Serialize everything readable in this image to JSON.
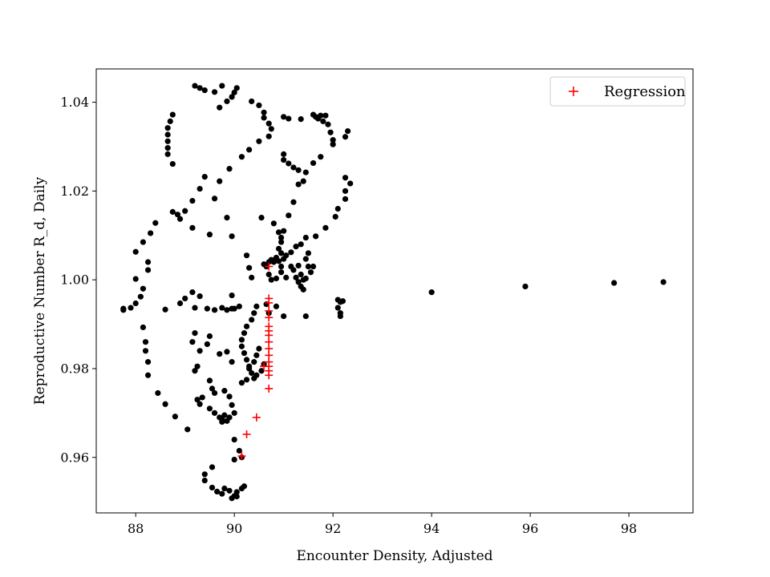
{
  "chart_data": {
    "type": "scatter",
    "title": "",
    "xlabel": "Encounter Density, Adjusted",
    "ylabel": "Reproductive Number R_d, Daily",
    "xlim": [
      87.2,
      99.3
    ],
    "ylim": [
      0.9475,
      1.0475
    ],
    "xticks": [
      88,
      90,
      92,
      94,
      96,
      98
    ],
    "yticks": [
      0.96,
      0.98,
      1.0,
      1.02,
      1.04
    ],
    "ytick_labels": [
      "0.96",
      "0.98",
      "1.00",
      "1.02",
      "1.04"
    ],
    "grid": false,
    "legend_position": "top-right",
    "colors": {
      "observed": "#000000",
      "regression": "#ff0000"
    },
    "series": [
      {
        "marker": "dot",
        "points": [
          [
            89.2,
            1.0437
          ],
          [
            89.3,
            1.0432
          ],
          [
            89.4,
            1.0427
          ],
          [
            89.6,
            1.0423
          ],
          [
            89.75,
            1.0437
          ],
          [
            89.7,
            1.0388
          ],
          [
            89.85,
            1.0402
          ],
          [
            89.95,
            1.0412
          ],
          [
            90.0,
            1.0422
          ],
          [
            90.05,
            1.0432
          ],
          [
            88.75,
            1.0372
          ],
          [
            88.7,
            1.0357
          ],
          [
            88.65,
            1.0342
          ],
          [
            88.65,
            1.0327
          ],
          [
            88.65,
            1.0312
          ],
          [
            88.65,
            1.0297
          ],
          [
            88.65,
            1.0283
          ],
          [
            88.75,
            1.0261
          ],
          [
            90.35,
            1.0402
          ],
          [
            90.5,
            1.0393
          ],
          [
            90.6,
            1.0377
          ],
          [
            90.6,
            1.0365
          ],
          [
            90.7,
            1.0352
          ],
          [
            90.75,
            1.034
          ],
          [
            90.7,
            1.0323
          ],
          [
            90.5,
            1.0312
          ],
          [
            90.3,
            1.0293
          ],
          [
            90.15,
            1.0277
          ],
          [
            89.9,
            1.025
          ],
          [
            89.7,
            1.0222
          ],
          [
            89.6,
            1.0183
          ],
          [
            91.0,
            1.0367
          ],
          [
            91.1,
            1.0363
          ],
          [
            91.35,
            1.0362
          ],
          [
            91.6,
            1.0372
          ],
          [
            91.65,
            1.0367
          ],
          [
            91.75,
            1.037
          ],
          [
            91.85,
            1.037
          ],
          [
            91.7,
            1.0363
          ],
          [
            91.8,
            1.0357
          ],
          [
            91.9,
            1.035
          ],
          [
            91.95,
            1.0332
          ],
          [
            92.0,
            1.0315
          ],
          [
            92.0,
            1.0305
          ],
          [
            91.75,
            1.0277
          ],
          [
            91.6,
            1.0263
          ],
          [
            91.45,
            1.0242
          ],
          [
            91.4,
            1.0222
          ],
          [
            92.3,
            1.0335
          ],
          [
            92.25,
            1.0322
          ],
          [
            92.35,
            1.0217
          ],
          [
            92.25,
            1.02
          ],
          [
            92.25,
            1.0182
          ],
          [
            92.25,
            1.023
          ],
          [
            92.1,
            1.016
          ],
          [
            92.05,
            1.0142
          ],
          [
            91.85,
            1.0117
          ],
          [
            91.65,
            1.0098
          ],
          [
            91.0,
            1.0283
          ],
          [
            91.0,
            1.027
          ],
          [
            91.1,
            1.0262
          ],
          [
            91.2,
            1.0253
          ],
          [
            91.3,
            1.0247
          ],
          [
            91.3,
            1.0215
          ],
          [
            91.2,
            1.0175
          ],
          [
            91.1,
            1.0145
          ],
          [
            91.0,
            1.011
          ],
          [
            90.95,
            1.0095
          ],
          [
            90.9,
            1.007
          ],
          [
            90.85,
            1.005
          ],
          [
            89.4,
            1.0232
          ],
          [
            89.3,
            1.0205
          ],
          [
            89.15,
            1.0178
          ],
          [
            89.0,
            1.0155
          ],
          [
            88.85,
            1.0147
          ],
          [
            88.75,
            1.0153
          ],
          [
            88.9,
            1.0137
          ],
          [
            89.15,
            1.0117
          ],
          [
            89.5,
            1.0102
          ],
          [
            88.4,
            1.0128
          ],
          [
            88.3,
            1.0105
          ],
          [
            88.15,
            1.0085
          ],
          [
            88.0,
            1.0063
          ],
          [
            88.25,
            1.004
          ],
          [
            88.25,
            1.0022
          ],
          [
            88.0,
            1.0002
          ],
          [
            88.15,
            0.998
          ],
          [
            88.1,
            0.9962
          ],
          [
            88.0,
            0.9947
          ],
          [
            87.9,
            0.9937
          ],
          [
            87.75,
            0.9935
          ],
          [
            87.75,
            0.9932
          ],
          [
            89.0,
            0.9958
          ],
          [
            88.9,
            0.9947
          ],
          [
            89.15,
            0.9972
          ],
          [
            88.6,
            0.9933
          ],
          [
            89.2,
            0.9937
          ],
          [
            89.45,
            0.9935
          ],
          [
            89.6,
            0.9932
          ],
          [
            89.75,
            0.9937
          ],
          [
            89.85,
            0.9932
          ],
          [
            89.95,
            0.9935
          ],
          [
            89.95,
            0.9965
          ],
          [
            90.0,
            0.9935
          ],
          [
            90.1,
            0.994
          ],
          [
            89.85,
            1.014
          ],
          [
            89.95,
            1.0098
          ],
          [
            90.55,
            1.014
          ],
          [
            90.8,
            1.0127
          ],
          [
            90.9,
            1.0107
          ],
          [
            90.95,
            1.0085
          ],
          [
            90.95,
            1.006
          ],
          [
            90.25,
            1.0055
          ],
          [
            90.3,
            1.0027
          ],
          [
            90.35,
            1.0005
          ],
          [
            90.6,
            1.0035
          ],
          [
            90.7,
            1.004
          ],
          [
            90.75,
            1.0045
          ],
          [
            90.8,
            1.004
          ],
          [
            90.9,
            1.0042
          ],
          [
            90.95,
            1.003
          ],
          [
            91.0,
            1.0047
          ],
          [
            91.05,
            1.0055
          ],
          [
            91.15,
            1.0062
          ],
          [
            91.25,
            1.0075
          ],
          [
            91.35,
            1.008
          ],
          [
            91.45,
            1.0095
          ],
          [
            90.65,
            1.003
          ],
          [
            90.7,
            1.0012
          ],
          [
            90.75,
            1.0
          ],
          [
            90.85,
            1.0003
          ],
          [
            90.95,
            1.0017
          ],
          [
            91.05,
            1.0005
          ],
          [
            91.15,
            1.003
          ],
          [
            91.2,
            1.0022
          ],
          [
            91.3,
            1.0032
          ],
          [
            91.35,
            1.0012
          ],
          [
            91.4,
            1.0
          ],
          [
            91.45,
            1.0003
          ],
          [
            91.5,
            1.003
          ],
          [
            91.55,
            1.0017
          ],
          [
            91.25,
            1.0005
          ],
          [
            91.3,
            0.9995
          ],
          [
            91.35,
            0.9985
          ],
          [
            91.4,
            0.9978
          ],
          [
            91.6,
            1.003
          ],
          [
            91.45,
            1.0047
          ],
          [
            91.5,
            1.006
          ],
          [
            90.85,
            0.994
          ],
          [
            91.0,
            0.9918
          ],
          [
            90.45,
            0.994
          ],
          [
            90.65,
            0.9945
          ],
          [
            90.7,
            0.9925
          ],
          [
            90.4,
            0.9925
          ],
          [
            90.35,
            0.991
          ],
          [
            90.25,
            0.9895
          ],
          [
            90.2,
            0.988
          ],
          [
            90.15,
            0.9865
          ],
          [
            90.15,
            0.985
          ],
          [
            90.2,
            0.9835
          ],
          [
            90.25,
            0.982
          ],
          [
            90.3,
            0.9805
          ],
          [
            90.35,
            0.979
          ],
          [
            90.45,
            0.9785
          ],
          [
            90.4,
            0.9778
          ],
          [
            90.25,
            0.9775
          ],
          [
            90.15,
            0.9768
          ],
          [
            90.3,
            0.98
          ],
          [
            90.4,
            0.9815
          ],
          [
            90.45,
            0.983
          ],
          [
            90.5,
            0.9845
          ],
          [
            90.6,
            0.981
          ],
          [
            90.55,
            0.9795
          ],
          [
            89.3,
            0.9963
          ],
          [
            89.2,
            0.988
          ],
          [
            89.15,
            0.986
          ],
          [
            89.45,
            0.9855
          ],
          [
            89.5,
            0.9873
          ],
          [
            89.7,
            0.9833
          ],
          [
            89.85,
            0.9838
          ],
          [
            89.95,
            0.9815
          ],
          [
            89.2,
            0.9795
          ],
          [
            89.25,
            0.9805
          ],
          [
            89.3,
            0.984
          ],
          [
            89.55,
            0.9755
          ],
          [
            88.15,
            0.9893
          ],
          [
            88.2,
            0.986
          ],
          [
            88.2,
            0.984
          ],
          [
            88.25,
            0.9815
          ],
          [
            88.25,
            0.9785
          ],
          [
            88.45,
            0.9745
          ],
          [
            88.6,
            0.972
          ],
          [
            88.8,
            0.9692
          ],
          [
            89.05,
            0.9663
          ],
          [
            89.25,
            0.973
          ],
          [
            89.3,
            0.972
          ],
          [
            89.35,
            0.9735
          ],
          [
            89.5,
            0.971
          ],
          [
            89.6,
            0.97
          ],
          [
            89.7,
            0.969
          ],
          [
            89.75,
            0.9685
          ],
          [
            89.85,
            0.9682
          ],
          [
            89.9,
            0.969
          ],
          [
            90.0,
            0.97
          ],
          [
            89.8,
            0.9695
          ],
          [
            89.6,
            0.9745
          ],
          [
            89.5,
            0.9773
          ],
          [
            89.8,
            0.975
          ],
          [
            89.9,
            0.9737
          ],
          [
            89.95,
            0.9718
          ],
          [
            89.75,
            0.968
          ],
          [
            90.0,
            0.964
          ],
          [
            90.1,
            0.9615
          ],
          [
            90.15,
            0.96
          ],
          [
            90.0,
            0.9595
          ],
          [
            89.55,
            0.9578
          ],
          [
            89.4,
            0.9562
          ],
          [
            89.4,
            0.9548
          ],
          [
            89.55,
            0.9532
          ],
          [
            89.65,
            0.9523
          ],
          [
            89.75,
            0.9518
          ],
          [
            89.8,
            0.953
          ],
          [
            89.9,
            0.9525
          ],
          [
            89.95,
            0.9508
          ],
          [
            90.0,
            0.9513
          ],
          [
            90.05,
            0.9522
          ],
          [
            90.05,
            0.9512
          ],
          [
            90.2,
            0.9535
          ],
          [
            90.15,
            0.953
          ],
          [
            92.1,
            0.9955
          ],
          [
            92.15,
            0.995
          ],
          [
            92.1,
            0.9937
          ],
          [
            92.15,
            0.9925
          ],
          [
            92.2,
            0.9952
          ],
          [
            92.15,
            0.9918
          ],
          [
            91.45,
            0.9918
          ],
          [
            94.0,
            0.9972
          ],
          [
            95.9,
            0.9985
          ],
          [
            97.7,
            0.9993
          ],
          [
            98.7,
            0.9995
          ]
        ]
      },
      {
        "name": "Regression",
        "marker": "plus",
        "points": [
          [
            90.7,
            1.003
          ],
          [
            90.7,
            0.9958
          ],
          [
            90.7,
            0.9948
          ],
          [
            90.7,
            0.993
          ],
          [
            90.7,
            0.9915
          ],
          [
            90.7,
            0.9895
          ],
          [
            90.7,
            0.9885
          ],
          [
            90.7,
            0.9875
          ],
          [
            90.7,
            0.986
          ],
          [
            90.7,
            0.9845
          ],
          [
            90.7,
            0.983
          ],
          [
            90.7,
            0.9815
          ],
          [
            90.7,
            0.9805
          ],
          [
            90.6,
            0.9805
          ],
          [
            90.7,
            0.9795
          ],
          [
            90.7,
            0.9785
          ],
          [
            90.7,
            0.9755
          ],
          [
            90.45,
            0.969
          ],
          [
            90.25,
            0.9652
          ],
          [
            90.15,
            0.9603
          ]
        ]
      }
    ]
  }
}
